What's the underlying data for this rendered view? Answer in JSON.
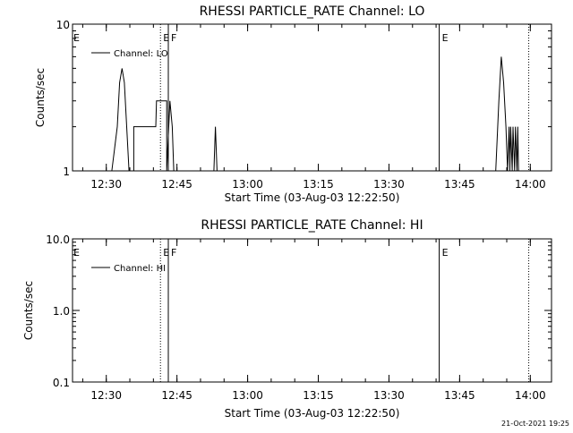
{
  "footer": {
    "timestamp": "21-Oct-2021 19:25"
  },
  "chart_data": [
    {
      "type": "line",
      "title": "RHESSI PARTICLE_RATE Channel: LO",
      "xlabel": "Start Time (03-Aug-03 12:22:50)",
      "ylabel": "Counts/sec",
      "yscale": "log",
      "xlim": [
        "12:22:50",
        "14:04:30"
      ],
      "ylim": [
        1,
        10
      ],
      "xticks": [
        "12:30",
        "12:45",
        "13:00",
        "13:15",
        "13:30",
        "13:45",
        "14:00"
      ],
      "yticks": [
        {
          "value": 1,
          "label": "1"
        },
        {
          "value": 10,
          "label": "10"
        }
      ],
      "legend_label": "Channel: LO",
      "legend_position": "top-left",
      "series": [
        {
          "name": "Channel: LO",
          "color": "#000000",
          "x": [
            "12:31:10",
            "12:32:20",
            "12:32:50",
            "12:33:20",
            "12:33:50",
            "12:34:20",
            "12:34:50",
            "12:35:50",
            "12:35:50",
            "12:36:00",
            "12:38:50",
            "12:40:30",
            "12:40:40",
            "12:42:50",
            "12:42:50",
            "12:43:30",
            "12:44:00",
            "12:44:20",
            "12:44:40",
            "12:52:50",
            "12:53:10",
            "12:53:30",
            "13:52:40",
            "13:53:20",
            "13:53:50",
            "13:54:20",
            "13:54:50",
            "13:55:10",
            "13:55:30",
            "13:55:40",
            "13:55:50",
            "13:56:10",
            "13:56:20",
            "13:56:40",
            "13:56:50",
            "13:57:10",
            "13:57:20",
            "13:57:30"
          ],
          "y": [
            1,
            2,
            4,
            5,
            4,
            2,
            1,
            1,
            2,
            2,
            2,
            2,
            3,
            3,
            1,
            3,
            2,
            1,
            1,
            1,
            2,
            1,
            1,
            3,
            6,
            4,
            2,
            1,
            2,
            1,
            2,
            1,
            2,
            1,
            2,
            1,
            2,
            1
          ]
        }
      ],
      "markers": [
        {
          "time": "12:41:30",
          "label": "E",
          "style": "dotted"
        },
        {
          "time": "12:43:10",
          "label": "F",
          "style": "solid"
        },
        {
          "time": "13:40:40",
          "label": "E",
          "style": "solid"
        },
        {
          "time": "13:59:40",
          "label": "",
          "style": "dotted"
        }
      ],
      "grid": false
    },
    {
      "type": "line",
      "title": "RHESSI PARTICLE_RATE Channel: HI",
      "xlabel": "Start Time (03-Aug-03 12:22:50)",
      "ylabel": "Counts/sec",
      "yscale": "log",
      "xlim": [
        "12:22:50",
        "14:04:30"
      ],
      "ylim": [
        0.1,
        10
      ],
      "xticks": [
        "12:30",
        "12:45",
        "13:00",
        "13:15",
        "13:30",
        "13:45",
        "14:00"
      ],
      "yticks": [
        {
          "value": 0.1,
          "label": "0.1"
        },
        {
          "value": 1,
          "label": "1.0"
        },
        {
          "value": 10,
          "label": "10.0"
        }
      ],
      "legend_label": "Channel: HI",
      "legend_position": "top-left",
      "series": [
        {
          "name": "Channel: HI",
          "color": "#000000",
          "x": [],
          "y": []
        }
      ],
      "markers": [
        {
          "time": "12:41:30",
          "label": "E",
          "style": "dotted"
        },
        {
          "time": "12:43:10",
          "label": "F",
          "style": "solid"
        },
        {
          "time": "13:40:40",
          "label": "E",
          "style": "solid"
        },
        {
          "time": "13:59:40",
          "label": "",
          "style": "dotted"
        }
      ],
      "grid": false
    }
  ]
}
